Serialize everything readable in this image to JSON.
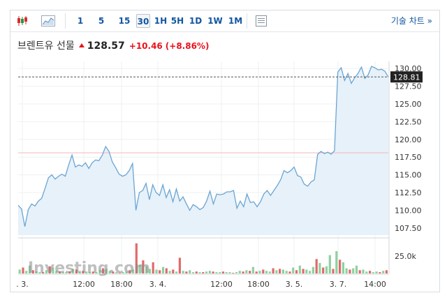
{
  "toolbar": {
    "intervals": [
      "1",
      "5",
      "15",
      "30",
      "1H",
      "5H",
      "1D",
      "1W",
      "1M"
    ],
    "active_interval": "30",
    "tech_chart_label": "기술 차트 »"
  },
  "header": {
    "instrument": "브렌트유 선물",
    "price": "128.57",
    "change": "+10.46",
    "change_pct": "(+8.86%)"
  },
  "watermark": "Investing.com",
  "colors": {
    "up": "#e8131d",
    "link": "#1256a0",
    "line": "#6aa5d3",
    "area": "#e7f1f9",
    "vol_up": "#8fd19e",
    "vol_down": "#e06a6a",
    "prev_close_line": "#f2b8b8"
  },
  "chart_data": {
    "type": "area",
    "ylim": [
      106.5,
      131
    ],
    "y_ticks": [
      "130.00",
      "127.50",
      "125.00",
      "122.50",
      "120.00",
      "117.50",
      "115.00",
      "112.50",
      "110.00",
      "107.50"
    ],
    "x_ticks": [
      ". 3.",
      "12:00",
      "18:00",
      "3. 4.",
      "12:00",
      "18:00",
      "3. 5.",
      "3. 7.",
      "14:00"
    ],
    "last_value": 128.81,
    "last_value_label": "128.81",
    "previous_close": 118.11,
    "values": [
      110.7,
      110.2,
      107.7,
      110.1,
      110.9,
      110.6,
      111.3,
      111.7,
      113.1,
      114.6,
      115.0,
      114.4,
      114.8,
      115.1,
      114.8,
      116.4,
      117.8,
      116.1,
      116.4,
      116.2,
      116.7,
      115.9,
      116.7,
      117.1,
      117.0,
      117.8,
      119.0,
      118.3,
      116.8,
      116.0,
      115.1,
      114.8,
      115.0,
      115.6,
      116.6,
      110.0,
      112.5,
      112.8,
      113.8,
      111.5,
      113.6,
      112.5,
      112.1,
      113.6,
      111.8,
      112.9,
      111.2,
      113.0,
      111.3,
      111.9,
      110.9,
      110.0,
      110.8,
      110.5,
      110.1,
      110.4,
      111.3,
      112.7,
      110.9,
      112.3,
      112.2,
      112.3,
      112.6,
      112.6,
      112.8,
      110.3,
      111.3,
      110.5,
      112.3,
      111.1,
      111.2,
      110.5,
      111.2,
      112.3,
      112.8,
      112.1,
      112.8,
      113.5,
      114.3,
      115.6,
      115.3,
      115.6,
      116.1,
      114.9,
      114.7,
      113.7,
      113.4,
      114.0,
      114.3,
      117.9,
      118.3,
      118.0,
      118.2,
      117.9,
      118.4,
      129.5,
      130.1,
      128.3,
      129.3,
      127.9,
      128.7,
      129.3,
      130.2,
      128.6,
      129.1,
      130.3,
      130.1,
      129.8,
      129.9,
      129.6,
      128.8
    ],
    "volume_label": "25.0k",
    "volume": {
      "bars": [
        {
          "v": 6,
          "up": true
        },
        {
          "v": 9,
          "up": false
        },
        {
          "v": 4,
          "up": true
        },
        {
          "v": 12,
          "up": true
        },
        {
          "v": 5,
          "up": false
        },
        {
          "v": 3,
          "up": true
        },
        {
          "v": 2,
          "up": true
        },
        {
          "v": 2,
          "up": false
        },
        {
          "v": 5,
          "up": true
        },
        {
          "v": 11,
          "up": false
        },
        {
          "v": 9,
          "up": true
        },
        {
          "v": 4,
          "up": true
        },
        {
          "v": 3,
          "up": false
        },
        {
          "v": 2,
          "up": true
        },
        {
          "v": 2,
          "up": true
        },
        {
          "v": 3,
          "up": false
        },
        {
          "v": 7,
          "up": true
        },
        {
          "v": 6,
          "up": false
        },
        {
          "v": 2,
          "up": true
        },
        {
          "v": 4,
          "up": false
        },
        {
          "v": 3,
          "up": true
        },
        {
          "v": 2,
          "up": true
        },
        {
          "v": 3,
          "up": false
        },
        {
          "v": 2,
          "up": true
        },
        {
          "v": 5,
          "up": true
        },
        {
          "v": 8,
          "up": false
        },
        {
          "v": 7,
          "up": true
        },
        {
          "v": 4,
          "up": true
        },
        {
          "v": 3,
          "up": false
        },
        {
          "v": 2,
          "up": true
        },
        {
          "v": 1,
          "up": false
        },
        {
          "v": 2,
          "up": true
        },
        {
          "v": 3,
          "up": true
        },
        {
          "v": 5,
          "up": false
        },
        {
          "v": 6,
          "up": true
        },
        {
          "v": 46,
          "up": false
        },
        {
          "v": 13,
          "up": true
        },
        {
          "v": 20,
          "up": false
        },
        {
          "v": 11,
          "up": true
        },
        {
          "v": 7,
          "up": true
        },
        {
          "v": 17,
          "up": false
        },
        {
          "v": 6,
          "up": true
        },
        {
          "v": 5,
          "up": false
        },
        {
          "v": 10,
          "up": true
        },
        {
          "v": 8,
          "up": false
        },
        {
          "v": 4,
          "up": true
        },
        {
          "v": 6,
          "up": false
        },
        {
          "v": 3,
          "up": true
        },
        {
          "v": 24,
          "up": false
        },
        {
          "v": 4,
          "up": true
        },
        {
          "v": 3,
          "up": false
        },
        {
          "v": 5,
          "up": true
        },
        {
          "v": 2,
          "up": true
        },
        {
          "v": 3,
          "up": false
        },
        {
          "v": 2,
          "up": true
        },
        {
          "v": 2,
          "up": false
        },
        {
          "v": 3,
          "up": true
        },
        {
          "v": 4,
          "up": true
        },
        {
          "v": 3,
          "up": false
        },
        {
          "v": 2,
          "up": true
        },
        {
          "v": 2,
          "up": true
        },
        {
          "v": 3,
          "up": false
        },
        {
          "v": 2,
          "up": true
        },
        {
          "v": 2,
          "up": true
        },
        {
          "v": 1,
          "up": false
        },
        {
          "v": 2,
          "up": true
        },
        {
          "v": 4,
          "up": true
        },
        {
          "v": 3,
          "up": false
        },
        {
          "v": 5,
          "up": true
        },
        {
          "v": 4,
          "up": false
        },
        {
          "v": 10,
          "up": true
        },
        {
          "v": 3,
          "up": false
        },
        {
          "v": 4,
          "up": true
        },
        {
          "v": 6,
          "up": false
        },
        {
          "v": 4,
          "up": true
        },
        {
          "v": 3,
          "up": true
        },
        {
          "v": 8,
          "up": false
        },
        {
          "v": 5,
          "up": true
        },
        {
          "v": 7,
          "up": false
        },
        {
          "v": 6,
          "up": true
        },
        {
          "v": 4,
          "up": true
        },
        {
          "v": 3,
          "up": false
        },
        {
          "v": 9,
          "up": true
        },
        {
          "v": 5,
          "up": false
        },
        {
          "v": 12,
          "up": true
        },
        {
          "v": 7,
          "up": false
        },
        {
          "v": 6,
          "up": true
        },
        {
          "v": 4,
          "up": true
        },
        {
          "v": 10,
          "up": true
        },
        {
          "v": 22,
          "up": false
        },
        {
          "v": 16,
          "up": true
        },
        {
          "v": 9,
          "up": false
        },
        {
          "v": 11,
          "up": true
        },
        {
          "v": 28,
          "up": true
        },
        {
          "v": 7,
          "up": false
        },
        {
          "v": 34,
          "up": true
        },
        {
          "v": 21,
          "up": false
        },
        {
          "v": 17,
          "up": true
        },
        {
          "v": 8,
          "up": true
        },
        {
          "v": 6,
          "up": false
        },
        {
          "v": 8,
          "up": true
        },
        {
          "v": 12,
          "up": true
        },
        {
          "v": 5,
          "up": false
        },
        {
          "v": 6,
          "up": true
        },
        {
          "v": 3,
          "up": true
        },
        {
          "v": 4,
          "up": false
        },
        {
          "v": 2,
          "up": true
        },
        {
          "v": 3,
          "up": true
        },
        {
          "v": 2,
          "up": false
        },
        {
          "v": 4,
          "up": true
        },
        {
          "v": 5,
          "up": false
        }
      ]
    }
  }
}
